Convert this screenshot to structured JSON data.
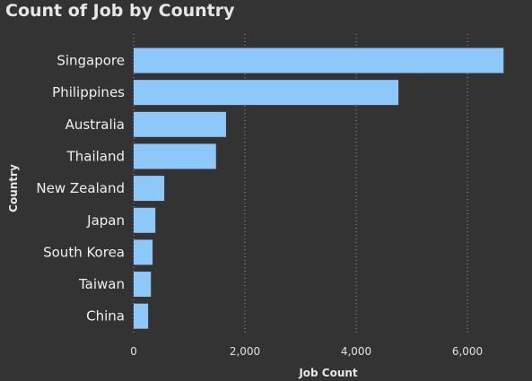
{
  "chart_data": {
    "type": "bar",
    "orientation": "horizontal",
    "title": "Count of Job by Country",
    "xlabel": "Job Count",
    "ylabel": "Country",
    "categories": [
      "Singapore",
      "Philippines",
      "Australia",
      "Thailand",
      "New Zealand",
      "Japan",
      "South Korea",
      "Taiwan",
      "China"
    ],
    "values": [
      6650,
      4760,
      1660,
      1480,
      550,
      390,
      340,
      310,
      260
    ],
    "xlim": [
      0,
      6700
    ],
    "xticks": [
      0,
      2000,
      4000,
      6000
    ],
    "xtick_labels": [
      "0",
      "2,000",
      "4,000",
      "6,000"
    ],
    "grid": "vertical dotted",
    "bar_color": "#8cc8fa",
    "background_color": "#333333"
  }
}
